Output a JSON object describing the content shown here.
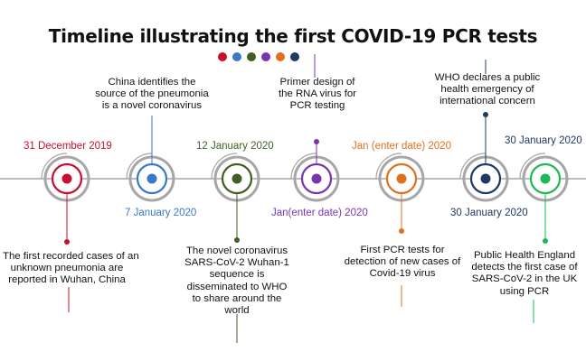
{
  "title": "Timeline illustrating the first COVID-19 PCR tests",
  "colors": {
    "red": "#c8102e",
    "blue": "#3a78c9",
    "green": "#3f5f23",
    "purple": "#7a35ab",
    "orange": "#e07020",
    "navy": "#1f3864",
    "bright_green": "#1db954",
    "ring": "#a6a6a6",
    "axis": "#a6a6a6"
  },
  "events": [
    {
      "date": "31 December 2019",
      "description": [
        "The first recorded cases of an",
        "unknown pneumonia are",
        "reported in Wuhan, China"
      ]
    },
    {
      "date": "7 January 2020",
      "description": [
        "China identifies the",
        "source of the pneumonia",
        "is a novel coronavirus"
      ]
    },
    {
      "date": "12 January 2020",
      "description": [
        "The novel coronavirus",
        "SARS-CoV-2 Wuhan-1",
        "sequence is",
        "disseminated to WHO",
        "to share around the",
        "world"
      ]
    },
    {
      "date": "Jan(enter date) 2020",
      "description": [
        "Primer design of",
        "the RNA virus for",
        "PCR testing"
      ]
    },
    {
      "date": "Jan (enter date) 2020",
      "description": [
        "First PCR tests for",
        "detection of new cases of",
        "Covid-19 virus"
      ]
    },
    {
      "date": "30 January 2020",
      "description": [
        "WHO declares a public",
        "health emergency of",
        "international concern"
      ]
    },
    {
      "date": "30 January 2020",
      "description": [
        "Public Health England",
        "detects the first case of",
        "SARS-CoV-2 in the UK",
        "using PCR"
      ]
    }
  ]
}
